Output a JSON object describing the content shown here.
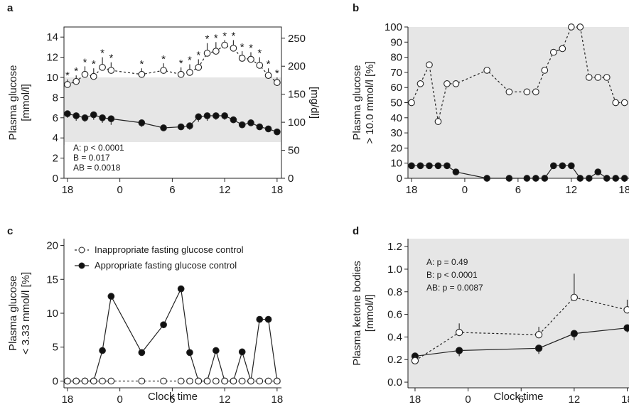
{
  "chart_data": [
    {
      "panel": "a",
      "type": "line",
      "ylabel": "Plasma glucose [mmol/l]",
      "y2label": "[mg/dl]",
      "x_ticks": [
        "18",
        "0",
        "6",
        "12",
        "18"
      ],
      "y_ticks": [
        "0",
        "2",
        "4",
        "6",
        "8",
        "10",
        "12",
        "14"
      ],
      "y2_ticks": [
        "0",
        "50",
        "100",
        "150",
        "200",
        "250"
      ],
      "ylim": [
        0,
        15
      ],
      "y2lim": [
        0,
        270
      ],
      "shaded_band": [
        3.3,
        10.0
      ],
      "annotations": [
        "A: p < 0.0001",
        "B = 0.017",
        "AB = 0.0018"
      ],
      "series": [
        {
          "style": "open",
          "x": [
            18,
            19,
            20,
            21,
            22,
            23,
            26.5,
            29,
            31,
            32,
            33,
            34,
            35,
            36,
            37,
            38,
            39,
            40,
            41,
            42
          ],
          "values": [
            9.3,
            9.6,
            10.3,
            10.1,
            11.0,
            10.7,
            10.3,
            10.7,
            10.3,
            10.5,
            11.0,
            12.4,
            12.6,
            13.2,
            12.9,
            11.9,
            11.8,
            11.2,
            10.2,
            9.5
          ],
          "err": [
            0.5,
            0.6,
            0.8,
            0.8,
            1.0,
            0.8,
            0.6,
            0.7,
            0.7,
            0.8,
            0.8,
            1.0,
            0.9,
            0.5,
            0.8,
            0.7,
            0.7,
            0.8,
            0.7,
            0.5
          ],
          "significance": "*"
        },
        {
          "style": "filled",
          "x": [
            18,
            19,
            20,
            21,
            22,
            23,
            26.5,
            29,
            31,
            32,
            33,
            34,
            35,
            36,
            37,
            38,
            39,
            40,
            41,
            42
          ],
          "values": [
            6.4,
            6.2,
            6.0,
            6.3,
            6.0,
            5.9,
            5.5,
            5.0,
            5.1,
            5.2,
            6.1,
            6.2,
            6.2,
            6.2,
            5.8,
            5.3,
            5.5,
            5.1,
            4.9,
            4.6
          ],
          "err": [
            0.4,
            0.5,
            0.4,
            0.5,
            0.5,
            0.6,
            0.4,
            0.3,
            0.3,
            0.4,
            0.5,
            0.5,
            0.4,
            0.4,
            0.3,
            0.3,
            0.3,
            0.3,
            0.3,
            0.3
          ]
        }
      ]
    },
    {
      "panel": "b",
      "type": "line",
      "ylabel": "Plasma glucose > 10.0 mmol/l [%]",
      "x_ticks": [
        "18",
        "0",
        "6",
        "12",
        "18"
      ],
      "y_ticks": [
        "0",
        "10",
        "20",
        "30",
        "40",
        "50",
        "60",
        "70",
        "80",
        "90",
        "100"
      ],
      "ylim": [
        0,
        100
      ],
      "series": [
        {
          "style": "open",
          "x": [
            18,
            19,
            20,
            21,
            22,
            23,
            26.5,
            29,
            31,
            32,
            33,
            34,
            35,
            36,
            37,
            38,
            39,
            40,
            41,
            42
          ],
          "values": [
            50,
            62.5,
            75,
            37.5,
            62.5,
            62.5,
            71.4,
            57.1,
            57.1,
            57.1,
            71.4,
            83.3,
            85.7,
            100,
            100,
            66.7,
            66.7,
            66.7,
            50,
            50
          ]
        },
        {
          "style": "filled",
          "x": [
            18,
            19,
            20,
            21,
            22,
            23,
            26.5,
            29,
            31,
            32,
            33,
            34,
            35,
            36,
            37,
            38,
            39,
            40,
            41,
            42
          ],
          "values": [
            8.3,
            8.3,
            8.3,
            8.3,
            8.3,
            4.2,
            0,
            0,
            0,
            0,
            0,
            8.3,
            8.3,
            8.3,
            0,
            0,
            4.2,
            0,
            0,
            0
          ]
        }
      ]
    },
    {
      "panel": "c",
      "type": "line",
      "xlabel": "Clock time",
      "ylabel": "Plasma glucose < 3.33 mmol/l [%]",
      "x_ticks": [
        "18",
        "0",
        "6",
        "12",
        "18"
      ],
      "y_ticks": [
        "0",
        "5",
        "10",
        "15",
        "20"
      ],
      "ylim": [
        -1,
        21
      ],
      "legend": [
        "Inappropriate fasting glucose control",
        "Appropriate fasting glucose control"
      ],
      "series": [
        {
          "style": "open",
          "x": [
            18,
            19,
            20,
            21,
            22,
            23,
            26.5,
            29,
            31,
            32,
            33,
            34,
            35,
            36,
            37,
            38,
            39,
            40,
            41,
            42
          ],
          "values": [
            0,
            0,
            0,
            0,
            0,
            0,
            0,
            0,
            0,
            0,
            0,
            0,
            0,
            0,
            0,
            0,
            0,
            0,
            0,
            0
          ]
        },
        {
          "style": "filled",
          "x": [
            18,
            19,
            20,
            21,
            22,
            23,
            26.5,
            29,
            31,
            32,
            33,
            34,
            35,
            36,
            37,
            38,
            39,
            40,
            41,
            42
          ],
          "values": [
            0,
            0,
            0,
            0,
            4.5,
            12.5,
            4.2,
            8.3,
            13.6,
            4.2,
            0,
            0,
            4.5,
            0,
            0,
            4.3,
            0,
            9.1,
            9.1,
            0
          ]
        }
      ]
    },
    {
      "panel": "d",
      "type": "line",
      "xlabel": "Clock time",
      "ylabel": "Plasma ketone bodies [mmol/l]",
      "x_ticks": [
        "18",
        "0",
        "6",
        "12",
        "18"
      ],
      "y_ticks": [
        "0.0",
        "0.2",
        "0.4",
        "0.6",
        "0.8",
        "1.0",
        "1.2"
      ],
      "ylim": [
        -0.05,
        1.27
      ],
      "annotations": [
        "A: p = 0.49",
        "B: p < 0.0001",
        "AB: p = 0.0087"
      ],
      "series": [
        {
          "style": "open",
          "x": [
            18,
            23,
            32,
            36,
            42
          ],
          "values": [
            0.19,
            0.44,
            0.42,
            0.75,
            0.64
          ],
          "err": [
            0.04,
            0.08,
            0.07,
            0.21,
            0.09
          ]
        },
        {
          "style": "filled",
          "x": [
            18,
            23,
            32,
            36,
            42
          ],
          "values": [
            0.23,
            0.28,
            0.3,
            0.43,
            0.48
          ],
          "err": [
            0.03,
            0.05,
            0.05,
            0.06,
            0.04
          ]
        }
      ]
    }
  ]
}
